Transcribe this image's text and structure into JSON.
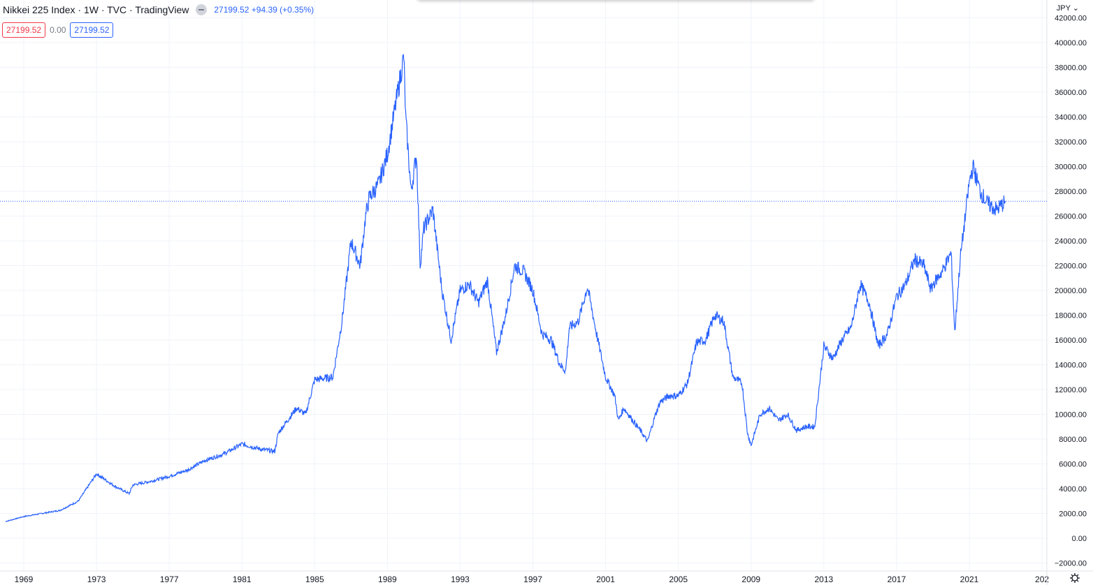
{
  "header": {
    "title": "Nikkei 225 Index · 1W · TVC · TradingView",
    "last_price": "27199.52",
    "change": "+94.39 (+0.35%)",
    "open_badge": "27199.52",
    "zero_value": "0.00",
    "close_badge": "27199.52",
    "currency": "JPY"
  },
  "colors": {
    "line": "#2962ff",
    "grid": "#f0f3fa",
    "red": "#f23645",
    "text": "#131722"
  },
  "icons": [
    "eye-icon",
    "chevron-down-icon",
    "gear-icon"
  ],
  "chart_data": {
    "type": "line",
    "series": [
      {
        "x": [
          1968,
          1969,
          1970,
          1971,
          1972,
          1973,
          1973.5,
          1974,
          1974.8,
          1975,
          1976,
          1977,
          1978,
          1979,
          1980,
          1981,
          1982,
          1982.8,
          1983,
          1984,
          1984.5,
          1985,
          1986,
          1986.5,
          1987,
          1987.5,
          1987.8,
          1988,
          1988.5,
          1989,
          1989.9,
          1990,
          1990.3,
          1990.6,
          1990.8,
          1991,
          1991.5,
          1992,
          1992.5,
          1993,
          1993.5,
          1994,
          1994.5,
          1995,
          1995.5,
          1996,
          1996.5,
          1997,
          1997.5,
          1998,
          1998.5,
          1998.8,
          1999,
          1999.5,
          2000,
          2000.5,
          2001,
          2001.5,
          2001.7,
          2002,
          2002.5,
          2003,
          2003.3,
          2003.7,
          2004,
          2004.5,
          2005,
          2005.5,
          2006,
          2006.5,
          2007,
          2007.5,
          2008,
          2008.5,
          2008.8,
          2009,
          2009.5,
          2010,
          2010.5,
          2011,
          2011.5,
          2012,
          2012.5,
          2013,
          2013.5,
          2014,
          2014.5,
          2015,
          2015.5,
          2016,
          2016.5,
          2017,
          2017.5,
          2018,
          2018.5,
          2018.9,
          2019,
          2019.5,
          2020,
          2020.2,
          2020.5,
          2021,
          2021.2,
          2021.6,
          2022,
          2022.5,
          2023
        ],
        "y": [
          1350,
          1750,
          2000,
          2250,
          3000,
          5200,
          4700,
          4200,
          3600,
          4300,
          4600,
          5000,
          5500,
          6300,
          6800,
          7600,
          7200,
          7000,
          8500,
          10500,
          10000,
          12800,
          13000,
          17500,
          24000,
          22000,
          26000,
          27500,
          28500,
          31000,
          38900,
          34000,
          28000,
          31000,
          22000,
          25000,
          26500,
          20000,
          16000,
          20000,
          20500,
          19000,
          20800,
          15000,
          18000,
          22000,
          21500,
          20000,
          16500,
          16000,
          14000,
          13500,
          17000,
          17500,
          20300,
          16500,
          13000,
          11500,
          9500,
          10500,
          9500,
          8500,
          7800,
          9800,
          11000,
          11500,
          11500,
          12500,
          15800,
          16000,
          18000,
          17500,
          13000,
          12500,
          8500,
          7500,
          10000,
          10500,
          9500,
          10000,
          8700,
          9000,
          9000,
          15500,
          14500,
          16000,
          17000,
          20500,
          19000,
          15500,
          16500,
          19500,
          20500,
          22500,
          22000,
          20000,
          20500,
          21500,
          23000,
          16600,
          22500,
          28700,
          30000,
          28000,
          27000,
          26500,
          27200
        ]
      }
    ],
    "xticks": [
      "1969",
      "1973",
      "1977",
      "1981",
      "1985",
      "1989",
      "1993",
      "1997",
      "2001",
      "2005",
      "2009",
      "2013",
      "2017",
      "2021",
      "202"
    ],
    "yticks": [
      "−2000.00",
      "0.00",
      "2000.00",
      "4000.00",
      "6000.00",
      "8000.00",
      "10000.00",
      "12000.00",
      "14000.00",
      "16000.00",
      "18000.00",
      "20000.00",
      "22000.00",
      "24000.00",
      "26000.00",
      "28000.00",
      "30000.00",
      "32000.00",
      "34000.00",
      "36000.00",
      "38000.00",
      "40000.00",
      "42000.00"
    ],
    "ylim": [
      -2000,
      42000
    ],
    "xlim": [
      1968,
      2025
    ],
    "last_value": 27199.52,
    "grid": true
  }
}
